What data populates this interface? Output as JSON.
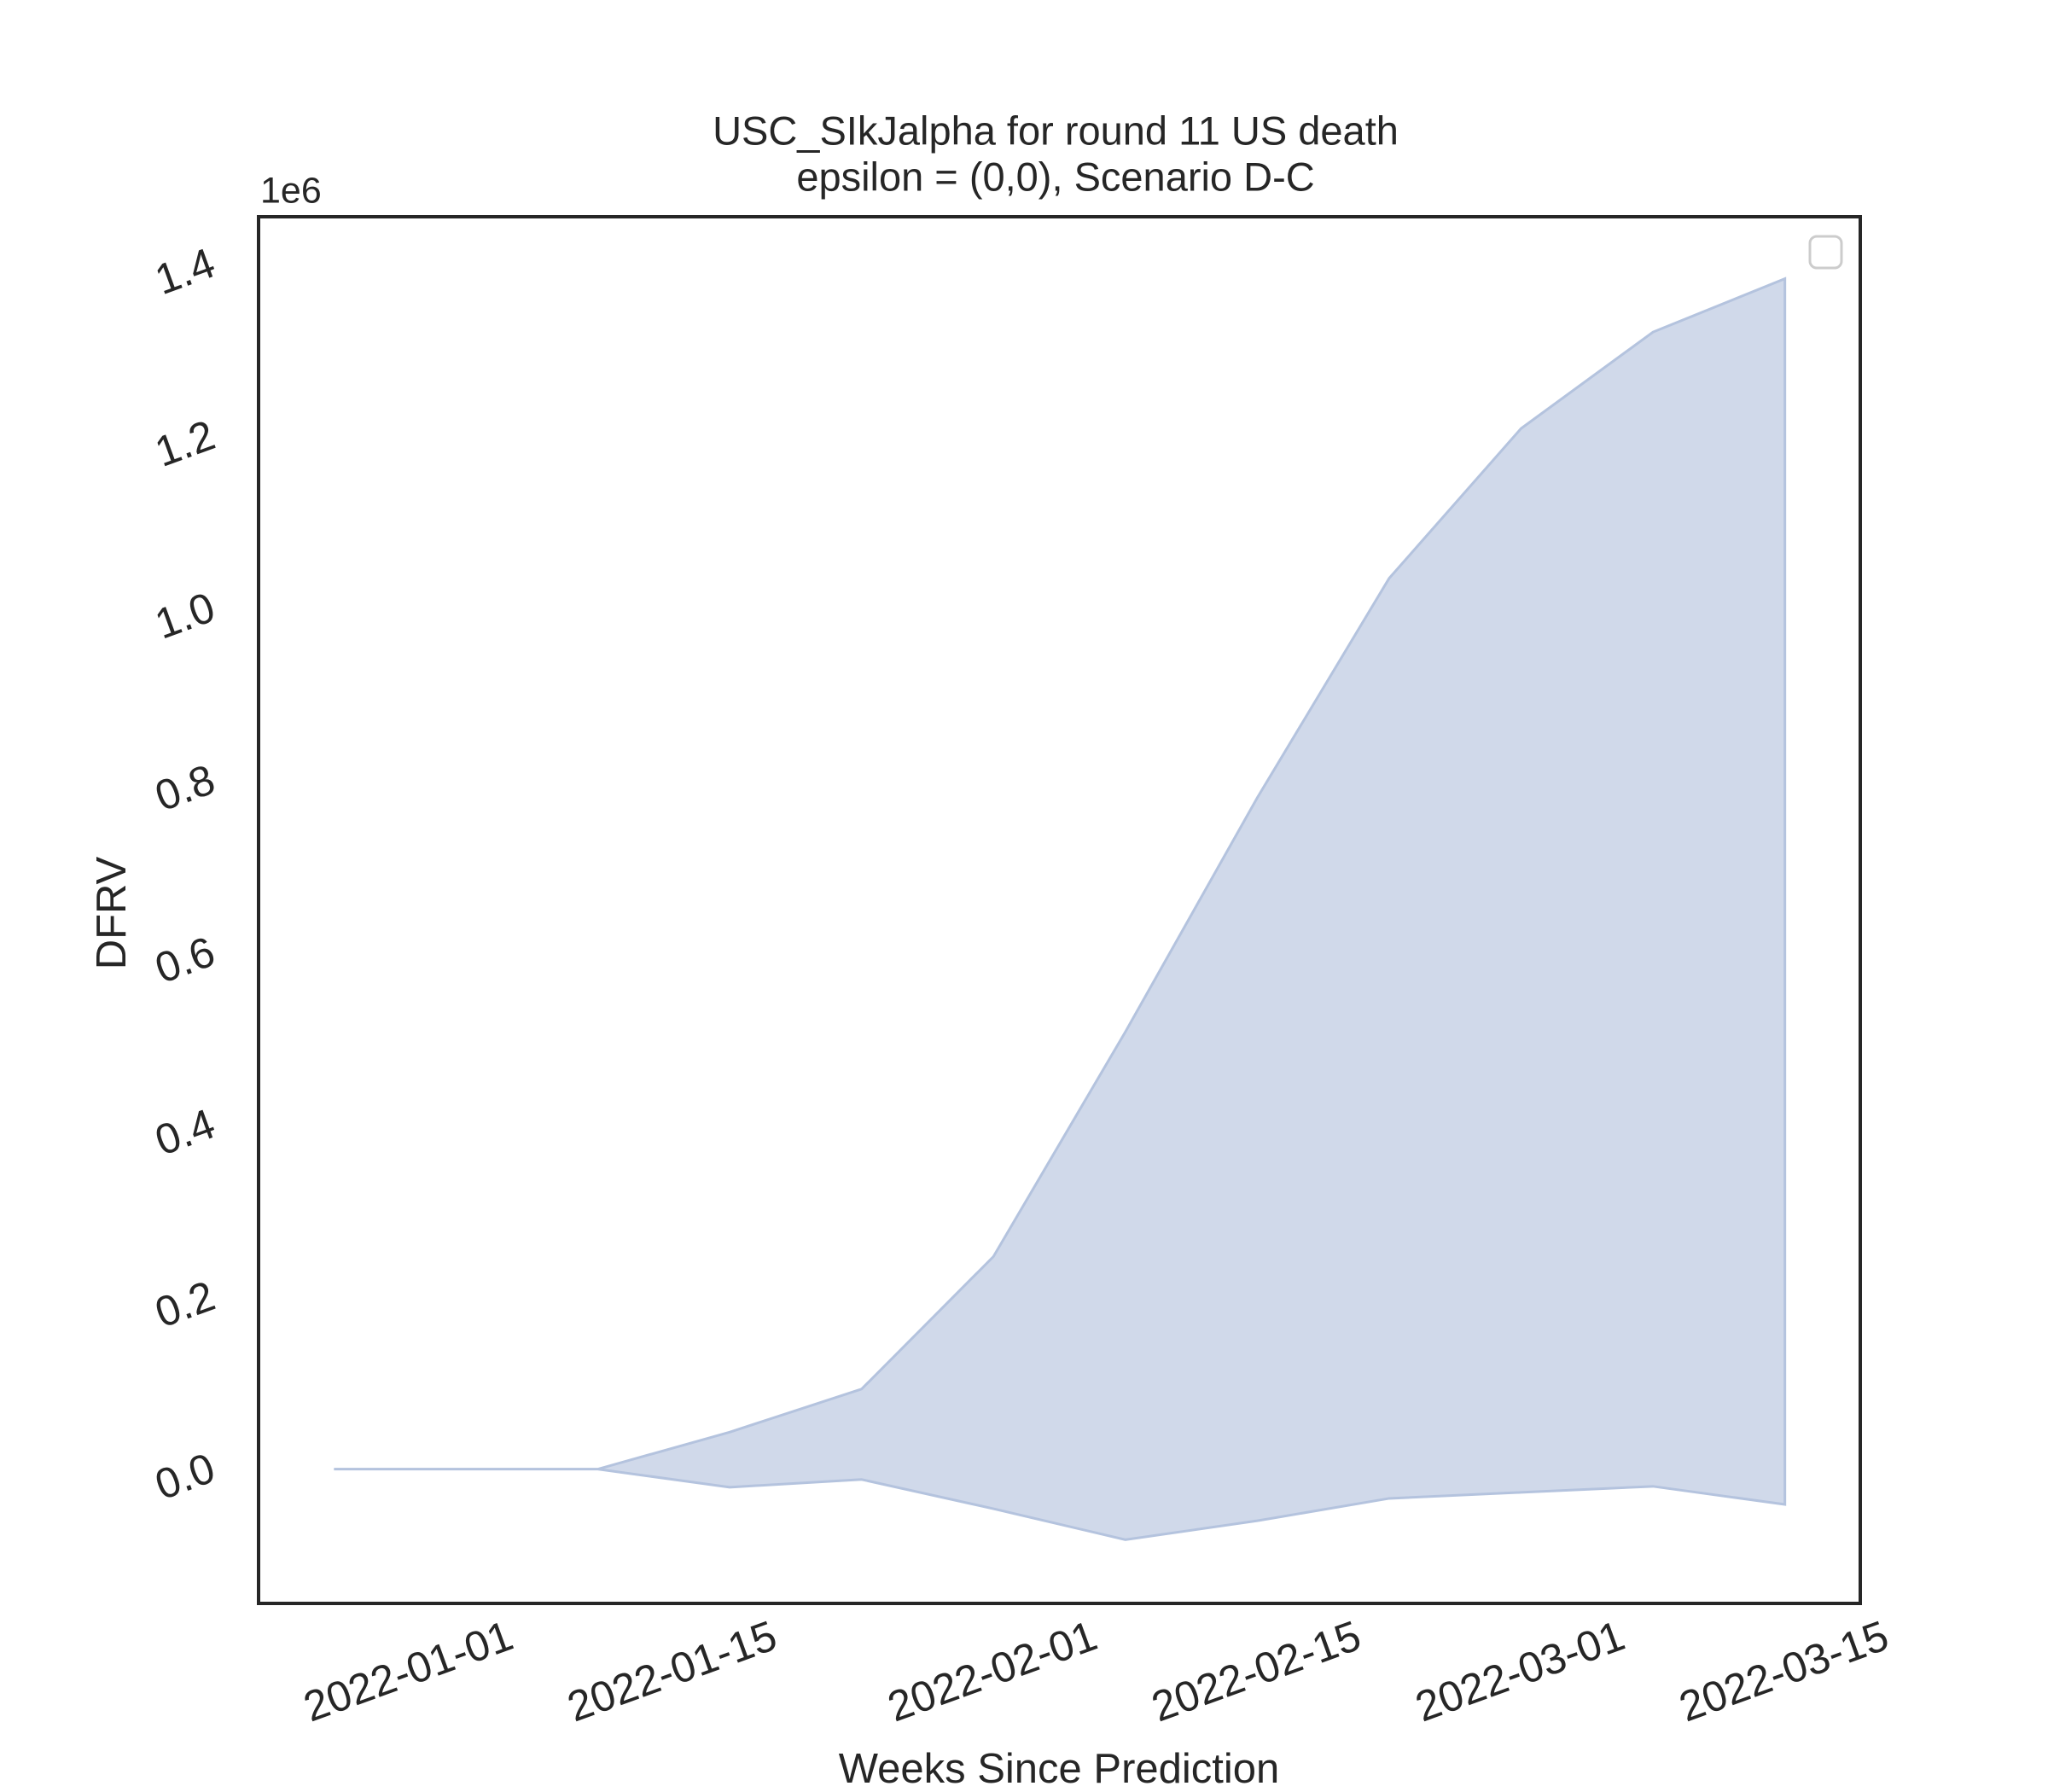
{
  "chart_data": {
    "type": "band",
    "title": "USC_SIkJalpha for round 11 US death",
    "subtitle": "epsilon = (0,0), Scenario D-C",
    "x_label": "Weeks Since Prediction",
    "y_label": "DFRV",
    "y_offset_label": "1e6",
    "x": [
      "2021-12-28",
      "2022-01-04",
      "2022-01-11",
      "2022-01-18",
      "2022-01-25",
      "2022-02-01",
      "2022-02-08",
      "2022-02-15",
      "2022-02-22",
      "2022-03-01",
      "2022-03-08",
      "2022-03-15"
    ],
    "upper": [
      0,
      0,
      0,
      43000,
      93000,
      247000,
      508000,
      780000,
      1035000,
      1209000,
      1321000,
      1383000
    ],
    "lower": [
      0,
      0,
      0,
      -21000,
      -12000,
      -46000,
      -82000,
      -60000,
      -34000,
      -27000,
      -20000,
      -41000
    ],
    "color": "#d0d9ea",
    "edge_color": "#b4c3de",
    "xlim": [
      "2021-12-24",
      "2022-03-19"
    ],
    "xticks": [
      "2022-01-01",
      "2022-01-15",
      "2022-02-01",
      "2022-02-15",
      "2022-03-01",
      "2022-03-15"
    ],
    "ylim": [
      -156000,
      1455000
    ],
    "yticks": [
      {
        "value": 0,
        "label": "0.0"
      },
      {
        "value": 200000,
        "label": "0.2"
      },
      {
        "value": 400000,
        "label": "0.4"
      },
      {
        "value": 600000,
        "label": "0.6"
      },
      {
        "value": 800000,
        "label": "0.8"
      },
      {
        "value": 1000000,
        "label": "1.0"
      },
      {
        "value": 1200000,
        "label": "1.2"
      },
      {
        "value": 1400000,
        "label": "1.4"
      }
    ],
    "grid": false
  }
}
